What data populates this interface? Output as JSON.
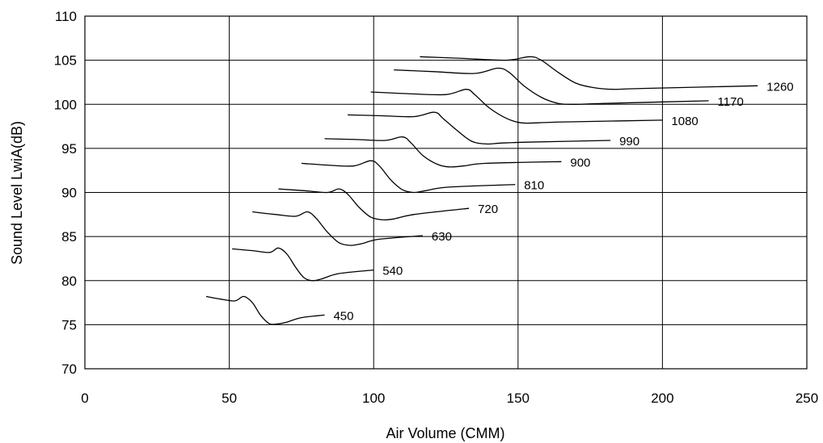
{
  "chart_data": {
    "type": "line",
    "title": "",
    "xlabel": "Air Volume (CMM)",
    "ylabel": "Sound Level LwiA(dB)",
    "xlim": [
      0,
      250
    ],
    "ylim": [
      70,
      110
    ],
    "xticks": [
      0,
      50,
      100,
      150,
      200,
      250
    ],
    "yticks": [
      70,
      75,
      80,
      85,
      90,
      95,
      100,
      105,
      110
    ],
    "grid": true,
    "legend": "none",
    "series": [
      {
        "name": "450",
        "x": [
          42,
          47,
          52,
          55,
          58,
          61,
          64,
          67,
          70,
          75,
          83
        ],
        "y": [
          78.2,
          77.9,
          77.7,
          78.2,
          77.5,
          76.0,
          75.1,
          75.1,
          75.3,
          75.8,
          76.1
        ]
      },
      {
        "name": "540",
        "x": [
          51,
          58,
          64,
          67,
          70,
          73,
          76,
          79,
          82,
          88,
          100
        ],
        "y": [
          83.6,
          83.4,
          83.2,
          83.7,
          83.0,
          81.5,
          80.3,
          80.0,
          80.2,
          80.8,
          81.2
        ]
      },
      {
        "name": "630",
        "x": [
          58,
          66,
          73,
          77,
          80,
          84,
          88,
          92,
          96,
          102,
          117
        ],
        "y": [
          87.8,
          87.5,
          87.3,
          87.8,
          87.1,
          85.5,
          84.3,
          84.0,
          84.2,
          84.7,
          85.1
        ]
      },
      {
        "name": "720",
        "x": [
          67,
          76,
          84,
          88,
          91,
          95,
          99,
          103,
          107,
          114,
          133
        ],
        "y": [
          90.4,
          90.2,
          90.0,
          90.4,
          89.8,
          88.3,
          87.2,
          86.9,
          87.0,
          87.5,
          88.2
        ]
      },
      {
        "name": "810",
        "x": [
          75,
          84,
          93,
          99,
          102,
          106,
          110,
          114,
          118,
          126,
          149
        ],
        "y": [
          93.3,
          93.1,
          93.0,
          93.6,
          93.0,
          91.4,
          90.3,
          90.0,
          90.2,
          90.6,
          90.9
        ]
      },
      {
        "name": "900",
        "x": [
          83,
          94,
          104,
          110,
          113,
          117,
          122,
          126,
          131,
          139,
          165
        ],
        "y": [
          96.1,
          96.0,
          95.9,
          96.3,
          95.6,
          94.2,
          93.2,
          92.9,
          93.0,
          93.3,
          93.5
        ]
      },
      {
        "name": "990",
        "x": [
          91,
          103,
          114,
          121,
          124,
          129,
          134,
          139,
          144,
          153,
          182
        ],
        "y": [
          98.8,
          98.7,
          98.6,
          99.1,
          98.4,
          97.0,
          95.8,
          95.5,
          95.6,
          95.7,
          95.9
        ]
      },
      {
        "name": "1080",
        "x": [
          99,
          112,
          125,
          132,
          135,
          140,
          146,
          151,
          157,
          166,
          200
        ],
        "y": [
          101.4,
          101.2,
          101.1,
          101.7,
          101.1,
          99.6,
          98.4,
          97.9,
          97.9,
          98.0,
          98.2
        ]
      },
      {
        "name": "1170",
        "x": [
          107,
          121,
          135,
          143,
          147,
          152,
          158,
          164,
          170,
          180,
          216
        ],
        "y": [
          103.9,
          103.7,
          103.5,
          104.1,
          103.6,
          102.1,
          100.8,
          100.1,
          100.0,
          100.1,
          100.4
        ]
      },
      {
        "name": "1260",
        "x": [
          116,
          131,
          146,
          154,
          158,
          164,
          170,
          176,
          183,
          193,
          233
        ],
        "y": [
          105.4,
          105.2,
          105.0,
          105.4,
          105.0,
          103.6,
          102.4,
          101.9,
          101.7,
          101.8,
          102.1
        ]
      }
    ]
  }
}
